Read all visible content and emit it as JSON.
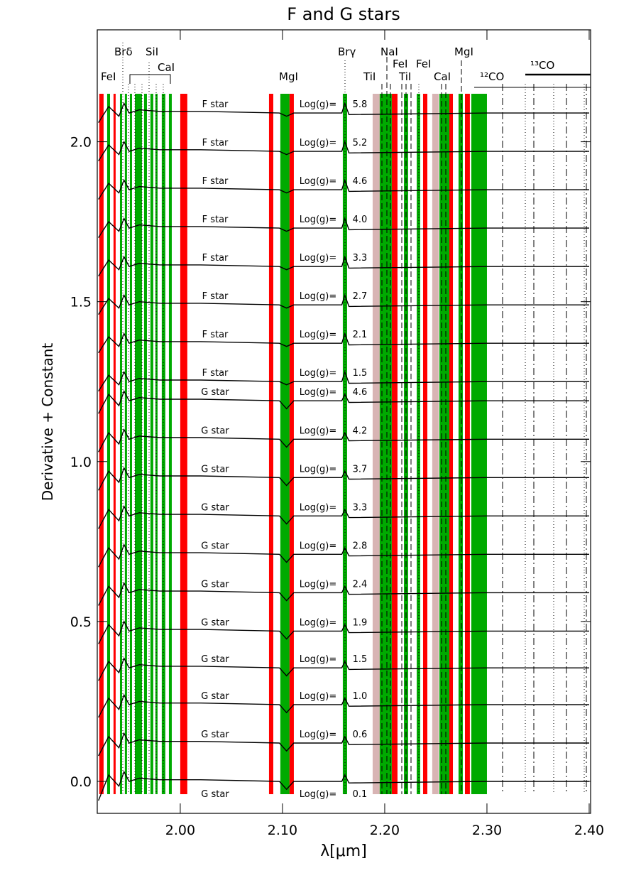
{
  "chart_data": {
    "type": "line",
    "title": "F and G stars",
    "xlabel": "λ[μm]",
    "ylabel": "Derivative + Constant",
    "xlim": [
      1.9188,
      2.4014
    ],
    "ylim": [
      -0.1,
      2.35
    ],
    "xticks": [
      {
        "value": 2.0,
        "label": "2.00"
      },
      {
        "value": 2.1,
        "label": "2.10"
      },
      {
        "value": 2.2,
        "label": "2.20"
      },
      {
        "value": 2.3,
        "label": "2.30"
      },
      {
        "value": 2.4,
        "label": "2.40"
      }
    ],
    "yticks": [
      {
        "value": 0,
        "label": "0.0"
      },
      {
        "value": 0.5,
        "label": "0.5"
      },
      {
        "value": 1,
        "label": "1.0"
      },
      {
        "value": 1.5,
        "label": "1.5"
      },
      {
        "value": 2,
        "label": "2.0"
      }
    ],
    "line_color": "#000000",
    "logg_label": "Log(g)=",
    "x": [
      1.92,
      1.93,
      1.94,
      1.945,
      1.95,
      1.96,
      1.98,
      2.02,
      2.097,
      2.104,
      2.111,
      2.158,
      2.161,
      2.165,
      2.3,
      2.4
    ],
    "series": [
      {
        "name": "F star",
        "logg": "5.8",
        "values": [
          2.06,
          2.11,
          2.08,
          2.12,
          2.09,
          2.1,
          2.095,
          2.095,
          2.09,
          2.08,
          2.09,
          2.09,
          2.12,
          2.085,
          2.09,
          2.09
        ]
      },
      {
        "name": "F star",
        "logg": "5.2",
        "values": [
          1.94,
          1.99,
          1.96,
          2.0,
          1.97,
          1.98,
          1.975,
          1.975,
          1.97,
          1.96,
          1.97,
          1.97,
          2.0,
          1.965,
          1.97,
          1.97
        ]
      },
      {
        "name": "F star",
        "logg": "4.6",
        "values": [
          1.82,
          1.87,
          1.84,
          1.88,
          1.85,
          1.86,
          1.855,
          1.855,
          1.85,
          1.84,
          1.85,
          1.85,
          1.88,
          1.845,
          1.85,
          1.85
        ]
      },
      {
        "name": "F star",
        "logg": "4.0",
        "values": [
          1.7,
          1.75,
          1.72,
          1.76,
          1.73,
          1.74,
          1.735,
          1.735,
          1.73,
          1.72,
          1.73,
          1.73,
          1.76,
          1.725,
          1.73,
          1.73
        ]
      },
      {
        "name": "F star",
        "logg": "3.3",
        "values": [
          1.58,
          1.63,
          1.6,
          1.64,
          1.61,
          1.62,
          1.615,
          1.615,
          1.61,
          1.6,
          1.61,
          1.61,
          1.64,
          1.605,
          1.61,
          1.61
        ]
      },
      {
        "name": "F star",
        "logg": "2.7",
        "values": [
          1.46,
          1.51,
          1.48,
          1.52,
          1.49,
          1.5,
          1.495,
          1.495,
          1.49,
          1.48,
          1.49,
          1.49,
          1.52,
          1.485,
          1.49,
          1.49
        ]
      },
      {
        "name": "F star",
        "logg": "2.1",
        "values": [
          1.34,
          1.39,
          1.36,
          1.4,
          1.37,
          1.38,
          1.375,
          1.375,
          1.37,
          1.36,
          1.37,
          1.37,
          1.4,
          1.365,
          1.37,
          1.37
        ]
      },
      {
        "name": "F star",
        "logg": "1.5",
        "values": [
          1.22,
          1.27,
          1.24,
          1.28,
          1.25,
          1.26,
          1.255,
          1.255,
          1.25,
          1.24,
          1.25,
          1.25,
          1.28,
          1.245,
          1.25,
          1.25
        ]
      },
      {
        "name": "G star",
        "logg": "4.6",
        "values": [
          1.15,
          1.21,
          1.175,
          1.22,
          1.19,
          1.2,
          1.195,
          1.195,
          1.19,
          1.165,
          1.19,
          1.19,
          1.21,
          1.185,
          1.19,
          1.19
        ]
      },
      {
        "name": "G star",
        "logg": "4.2",
        "values": [
          1.03,
          1.09,
          1.055,
          1.1,
          1.07,
          1.08,
          1.075,
          1.075,
          1.07,
          1.045,
          1.07,
          1.07,
          1.09,
          1.065,
          1.07,
          1.07
        ]
      },
      {
        "name": "G star",
        "logg": "3.7",
        "values": [
          0.91,
          0.97,
          0.935,
          0.98,
          0.95,
          0.96,
          0.955,
          0.955,
          0.95,
          0.925,
          0.95,
          0.95,
          0.97,
          0.945,
          0.95,
          0.95
        ]
      },
      {
        "name": "G star",
        "logg": "3.3",
        "values": [
          0.79,
          0.85,
          0.815,
          0.86,
          0.83,
          0.84,
          0.835,
          0.835,
          0.83,
          0.805,
          0.83,
          0.83,
          0.85,
          0.825,
          0.83,
          0.83
        ]
      },
      {
        "name": "G star",
        "logg": "2.8",
        "values": [
          0.67,
          0.73,
          0.695,
          0.74,
          0.71,
          0.72,
          0.715,
          0.715,
          0.71,
          0.685,
          0.71,
          0.71,
          0.73,
          0.705,
          0.71,
          0.71
        ]
      },
      {
        "name": "G star",
        "logg": "2.4",
        "values": [
          0.55,
          0.61,
          0.575,
          0.62,
          0.59,
          0.6,
          0.595,
          0.595,
          0.59,
          0.565,
          0.59,
          0.59,
          0.61,
          0.585,
          0.59,
          0.59
        ]
      },
      {
        "name": "G star",
        "logg": "1.9",
        "values": [
          0.43,
          0.49,
          0.455,
          0.5,
          0.47,
          0.48,
          0.475,
          0.475,
          0.47,
          0.445,
          0.47,
          0.47,
          0.49,
          0.465,
          0.47,
          0.47
        ]
      },
      {
        "name": "G star",
        "logg": "1.5",
        "values": [
          0.315,
          0.375,
          0.34,
          0.385,
          0.355,
          0.365,
          0.36,
          0.36,
          0.355,
          0.33,
          0.355,
          0.355,
          0.375,
          0.35,
          0.355,
          0.355
        ]
      },
      {
        "name": "G star",
        "logg": "1.0",
        "values": [
          0.2,
          0.26,
          0.225,
          0.27,
          0.24,
          0.25,
          0.245,
          0.245,
          0.24,
          0.215,
          0.24,
          0.24,
          0.26,
          0.235,
          0.24,
          0.24
        ]
      },
      {
        "name": "G star",
        "logg": "0.6",
        "values": [
          0.08,
          0.14,
          0.105,
          0.15,
          0.12,
          0.13,
          0.125,
          0.125,
          0.12,
          0.095,
          0.12,
          0.12,
          0.14,
          0.115,
          0.12,
          0.12
        ]
      },
      {
        "name": "G star",
        "logg": "0.1",
        "values": [
          -0.06,
          0.02,
          -0.015,
          0.03,
          0.0,
          0.01,
          0.005,
          0.005,
          0.0,
          -0.025,
          0.0,
          0.0,
          0.02,
          -0.005,
          0.0,
          0.0
        ]
      }
    ],
    "bands": [
      {
        "x": [
          1.9208,
          1.925
        ],
        "color": "#ff0000"
      },
      {
        "x": [
          1.9285,
          1.9313
        ],
        "color": "#00aa00"
      },
      {
        "x": [
          1.9347,
          1.9368
        ],
        "color": "#ff0000"
      },
      {
        "x": [
          1.941,
          1.9431
        ],
        "color": "#00aa00"
      },
      {
        "x": [
          1.9458,
          1.9479
        ],
        "color": "#00aa00"
      },
      {
        "x": [
          1.9507,
          1.9528
        ],
        "color": "#00aa00"
      },
      {
        "x": [
          1.9556,
          1.9625
        ],
        "color": "#00aa00"
      },
      {
        "x": [
          1.9646,
          1.9674
        ],
        "color": "#00aa00"
      },
      {
        "x": [
          1.9708,
          1.9736
        ],
        "color": "#00aa00"
      },
      {
        "x": [
          1.9757,
          1.9778
        ],
        "color": "#00aa00"
      },
      {
        "x": [
          1.9819,
          1.9854
        ],
        "color": "#00aa00"
      },
      {
        "x": [
          1.9889,
          1.9917
        ],
        "color": "#00aa00"
      },
      {
        "x": [
          2.0,
          2.0069
        ],
        "color": "#ff0000"
      },
      {
        "x": [
          2.0868,
          2.091
        ],
        "color": "#ff0000"
      },
      {
        "x": [
          2.0979,
          2.1069
        ],
        "color": "#00aa00"
      },
      {
        "x": [
          2.1069,
          2.1111
        ],
        "color": "#ff0000"
      },
      {
        "x": [
          2.159,
          2.1632
        ],
        "color": "#00aa00"
      },
      {
        "x": [
          2.1882,
          2.1951
        ],
        "color": "#d8b4b4"
      },
      {
        "x": [
          2.1951,
          2.2069
        ],
        "color": "#00aa00"
      },
      {
        "x": [
          2.2069,
          2.2125
        ],
        "color": "#ff0000"
      },
      {
        "x": [
          2.2188,
          2.2229
        ],
        "color": "#00aa00"
      },
      {
        "x": [
          2.2313,
          2.2347
        ],
        "color": "#00aa00"
      },
      {
        "x": [
          2.2375,
          2.2417
        ],
        "color": "#ff0000"
      },
      {
        "x": [
          2.2465,
          2.2528
        ],
        "color": "#d8b4b4"
      },
      {
        "x": [
          2.2535,
          2.2632
        ],
        "color": "#00aa00"
      },
      {
        "x": [
          2.2632,
          2.2667
        ],
        "color": "#ff0000"
      },
      {
        "x": [
          2.2722,
          2.2764
        ],
        "color": "#00aa00"
      },
      {
        "x": [
          2.2785,
          2.2833
        ],
        "color": "#ff0000"
      },
      {
        "x": [
          2.2847,
          2.3
        ],
        "color": "#00aa00"
      }
    ],
    "line_ids": [
      "FeI",
      "Brδ",
      "SiI",
      "CaI",
      "MgI",
      "Brγ",
      "TiI",
      "NaI",
      "FeI",
      "TiI",
      "FeI",
      "CaI",
      "MgI",
      "¹²CO",
      "¹³CO"
    ]
  }
}
